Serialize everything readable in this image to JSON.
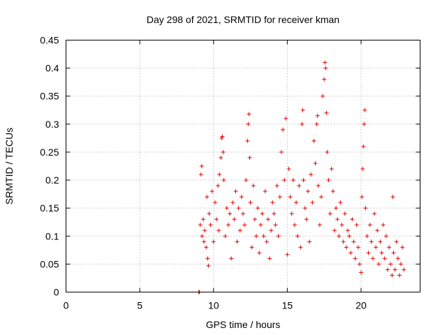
{
  "chart_data": {
    "type": "scatter",
    "title": "Day 298 of 2021, SRMTID for receiver kman",
    "xlabel": "GPS time / hours",
    "ylabel": "SRMTID / TECUs",
    "xlim": [
      0,
      24
    ],
    "ylim": [
      0,
      0.45
    ],
    "xticks": [
      0,
      5,
      10,
      15,
      20
    ],
    "yticks": [
      0,
      0.05,
      0.1,
      0.15,
      0.2,
      0.25,
      0.3,
      0.35,
      0.4,
      0.45
    ],
    "xtick_labels": [
      "0",
      "5",
      "10",
      "15",
      "20"
    ],
    "ytick_labels": [
      "0",
      "0.05",
      "0.1",
      "0.15",
      "0.2",
      "0.25",
      "0.3",
      "0.35",
      "0.4",
      "0.45"
    ],
    "grid": true,
    "marker": "+",
    "color": "#e00000",
    "series": [
      {
        "name": "SRMTID",
        "points": [
          [
            9.0,
            0.0
          ],
          [
            9.05,
            0.0
          ],
          [
            9.1,
            0.12
          ],
          [
            9.15,
            0.21
          ],
          [
            9.2,
            0.225
          ],
          [
            9.22,
            0.1
          ],
          [
            9.3,
            0.13
          ],
          [
            9.35,
            0.09
          ],
          [
            9.4,
            0.11
          ],
          [
            9.5,
            0.08
          ],
          [
            9.55,
            0.17
          ],
          [
            9.6,
            0.06
          ],
          [
            9.65,
            0.047
          ],
          [
            9.7,
            0.14
          ],
          [
            9.8,
            0.12
          ],
          [
            9.9,
            0.18
          ],
          [
            10.0,
            0.09
          ],
          [
            10.1,
            0.16
          ],
          [
            10.2,
            0.13
          ],
          [
            10.3,
            0.19
          ],
          [
            10.35,
            0.11
          ],
          [
            10.4,
            0.21
          ],
          [
            10.5,
            0.24
          ],
          [
            10.55,
            0.275
          ],
          [
            10.6,
            0.278
          ],
          [
            10.65,
            0.25
          ],
          [
            10.7,
            0.2
          ],
          [
            10.8,
            0.1
          ],
          [
            10.9,
            0.15
          ],
          [
            11.0,
            0.12
          ],
          [
            11.1,
            0.14
          ],
          [
            11.2,
            0.06
          ],
          [
            11.3,
            0.16
          ],
          [
            11.4,
            0.13
          ],
          [
            11.5,
            0.18
          ],
          [
            11.6,
            0.09
          ],
          [
            11.7,
            0.15
          ],
          [
            11.8,
            0.11
          ],
          [
            11.9,
            0.17
          ],
          [
            12.0,
            0.14
          ],
          [
            12.1,
            0.12
          ],
          [
            12.2,
            0.2
          ],
          [
            12.3,
            0.27
          ],
          [
            12.35,
            0.3
          ],
          [
            12.4,
            0.318
          ],
          [
            12.45,
            0.24
          ],
          [
            12.5,
            0.16
          ],
          [
            12.6,
            0.08
          ],
          [
            12.7,
            0.19
          ],
          [
            12.8,
            0.13
          ],
          [
            12.9,
            0.1
          ],
          [
            13.0,
            0.15
          ],
          [
            13.1,
            0.07
          ],
          [
            13.2,
            0.12
          ],
          [
            13.3,
            0.14
          ],
          [
            13.4,
            0.1
          ],
          [
            13.5,
            0.18
          ],
          [
            13.6,
            0.09
          ],
          [
            13.7,
            0.13
          ],
          [
            13.8,
            0.06
          ],
          [
            13.9,
            0.11
          ],
          [
            14.0,
            0.16
          ],
          [
            14.1,
            0.14
          ],
          [
            14.2,
            0.12
          ],
          [
            14.3,
            0.19
          ],
          [
            14.4,
            0.1
          ],
          [
            14.5,
            0.17
          ],
          [
            14.6,
            0.25
          ],
          [
            14.7,
            0.29
          ],
          [
            14.8,
            0.2
          ],
          [
            14.9,
            0.31
          ],
          [
            15.0,
            0.067
          ],
          [
            15.1,
            0.22
          ],
          [
            15.2,
            0.17
          ],
          [
            15.3,
            0.14
          ],
          [
            15.4,
            0.2
          ],
          [
            15.5,
            0.12
          ],
          [
            15.6,
            0.16
          ],
          [
            15.7,
            0.1
          ],
          [
            15.8,
            0.19
          ],
          [
            15.9,
            0.08
          ],
          [
            16.0,
            0.3
          ],
          [
            16.05,
            0.325
          ],
          [
            16.1,
            0.2
          ],
          [
            16.2,
            0.15
          ],
          [
            16.3,
            0.13
          ],
          [
            16.4,
            0.18
          ],
          [
            16.5,
            0.09
          ],
          [
            16.6,
            0.21
          ],
          [
            16.7,
            0.16
          ],
          [
            16.8,
            0.27
          ],
          [
            16.9,
            0.23
          ],
          [
            17.0,
            0.3
          ],
          [
            17.05,
            0.315
          ],
          [
            17.1,
            0.19
          ],
          [
            17.2,
            0.12
          ],
          [
            17.3,
            0.17
          ],
          [
            17.4,
            0.35
          ],
          [
            17.5,
            0.38
          ],
          [
            17.55,
            0.41
          ],
          [
            17.6,
            0.4
          ],
          [
            17.65,
            0.32
          ],
          [
            17.7,
            0.25
          ],
          [
            17.8,
            0.2
          ],
          [
            17.9,
            0.14
          ],
          [
            18.0,
            0.22
          ],
          [
            18.1,
            0.18
          ],
          [
            18.2,
            0.11
          ],
          [
            18.3,
            0.15
          ],
          [
            18.4,
            0.13
          ],
          [
            18.5,
            0.1
          ],
          [
            18.6,
            0.16
          ],
          [
            18.7,
            0.12
          ],
          [
            18.8,
            0.09
          ],
          [
            18.9,
            0.14
          ],
          [
            19.0,
            0.08
          ],
          [
            19.1,
            0.11
          ],
          [
            19.2,
            0.1
          ],
          [
            19.3,
            0.07
          ],
          [
            19.4,
            0.13
          ],
          [
            19.5,
            0.09
          ],
          [
            19.6,
            0.06
          ],
          [
            19.7,
            0.12
          ],
          [
            19.8,
            0.08
          ],
          [
            19.9,
            0.05
          ],
          [
            20.0,
            0.035
          ],
          [
            20.05,
            0.17
          ],
          [
            20.1,
            0.22
          ],
          [
            20.15,
            0.26
          ],
          [
            20.2,
            0.3
          ],
          [
            20.25,
            0.325
          ],
          [
            20.3,
            0.15
          ],
          [
            20.4,
            0.1
          ],
          [
            20.5,
            0.07
          ],
          [
            20.6,
            0.12
          ],
          [
            20.7,
            0.09
          ],
          [
            20.8,
            0.06
          ],
          [
            20.9,
            0.14
          ],
          [
            21.0,
            0.08
          ],
          [
            21.1,
            0.11
          ],
          [
            21.2,
            0.05
          ],
          [
            21.3,
            0.09
          ],
          [
            21.4,
            0.07
          ],
          [
            21.5,
            0.12
          ],
          [
            21.6,
            0.06
          ],
          [
            21.7,
            0.1
          ],
          [
            21.8,
            0.04
          ],
          [
            21.9,
            0.08
          ],
          [
            22.0,
            0.05
          ],
          [
            22.1,
            0.03
          ],
          [
            22.15,
            0.17
          ],
          [
            22.2,
            0.07
          ],
          [
            22.3,
            0.04
          ],
          [
            22.4,
            0.09
          ],
          [
            22.5,
            0.06
          ],
          [
            22.6,
            0.03
          ],
          [
            22.7,
            0.05
          ],
          [
            22.8,
            0.08
          ],
          [
            22.9,
            0.04
          ]
        ]
      }
    ]
  }
}
